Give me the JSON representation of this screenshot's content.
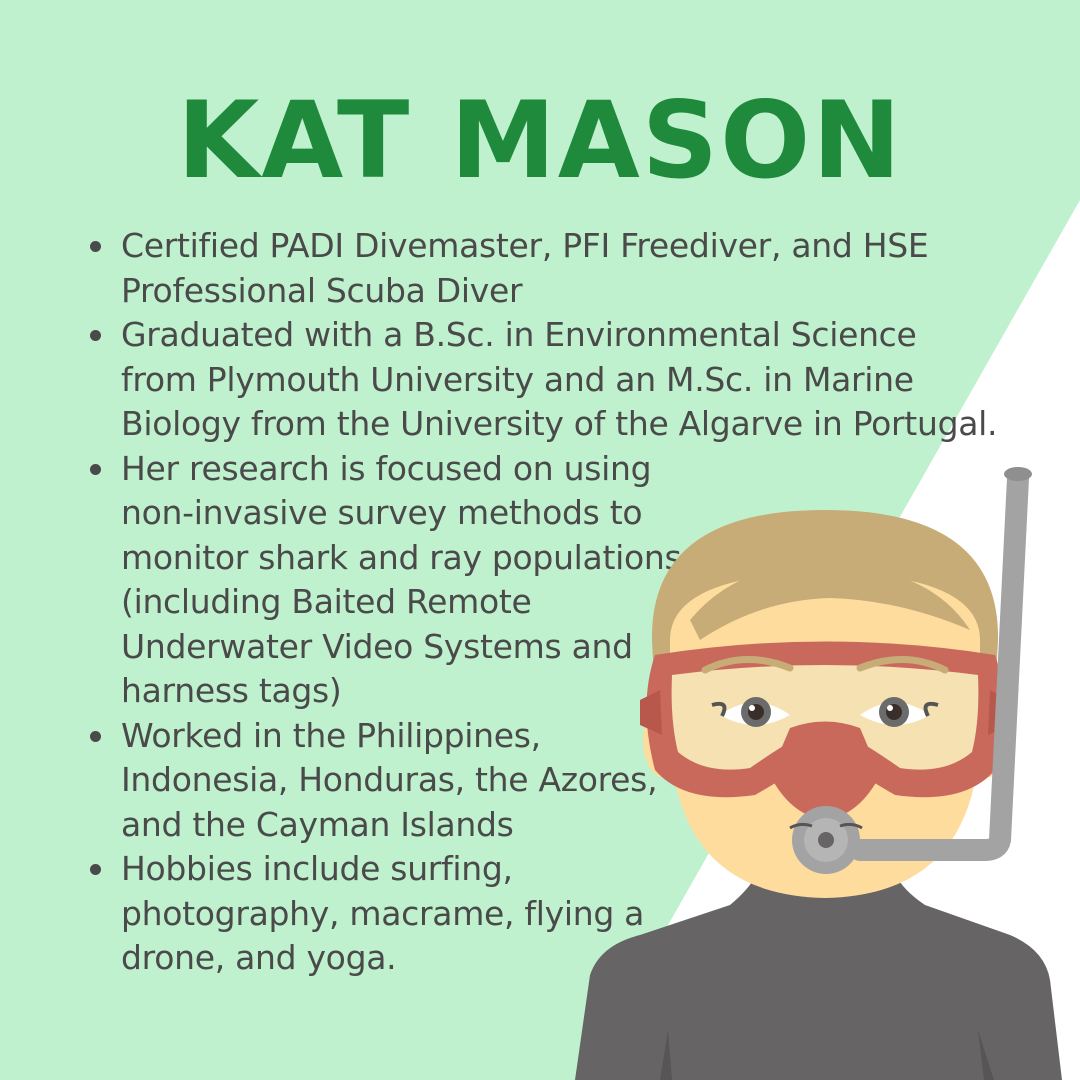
{
  "title": "KAT MASON",
  "bullets": [
    "Certified PADI Divemaster, PFI Freediver, and HSE Professional Scuba Diver",
    "Graduated with a B.Sc. in Environmental Science from Plymouth University and an M.Sc. in Marine Biology from the University of the Algarve in Portugal.",
    "Her research is focused on using non-invasive survey methods to monitor shark and ray populations (including Baited Remote Underwater Video Systems and harness tags)",
    "Worked in the Philippines, Indonesia, Honduras, the Azores, and the Cayman Islands",
    "Hobbies include surfing, photography, macrame, flying a drone, and yoga."
  ],
  "colors": {
    "background": "#bff1ce",
    "diagonal_panel": "#ffffff",
    "title": "#1f8a3c",
    "text": "#4a4a4a",
    "hair": "#c7ac78",
    "skin": "#fddc9d",
    "mask_frame": "#c9695c",
    "wetsuit": "#666464",
    "snorkel": "#a3a3a3"
  },
  "illustration": "diver-with-snorkel-mask"
}
